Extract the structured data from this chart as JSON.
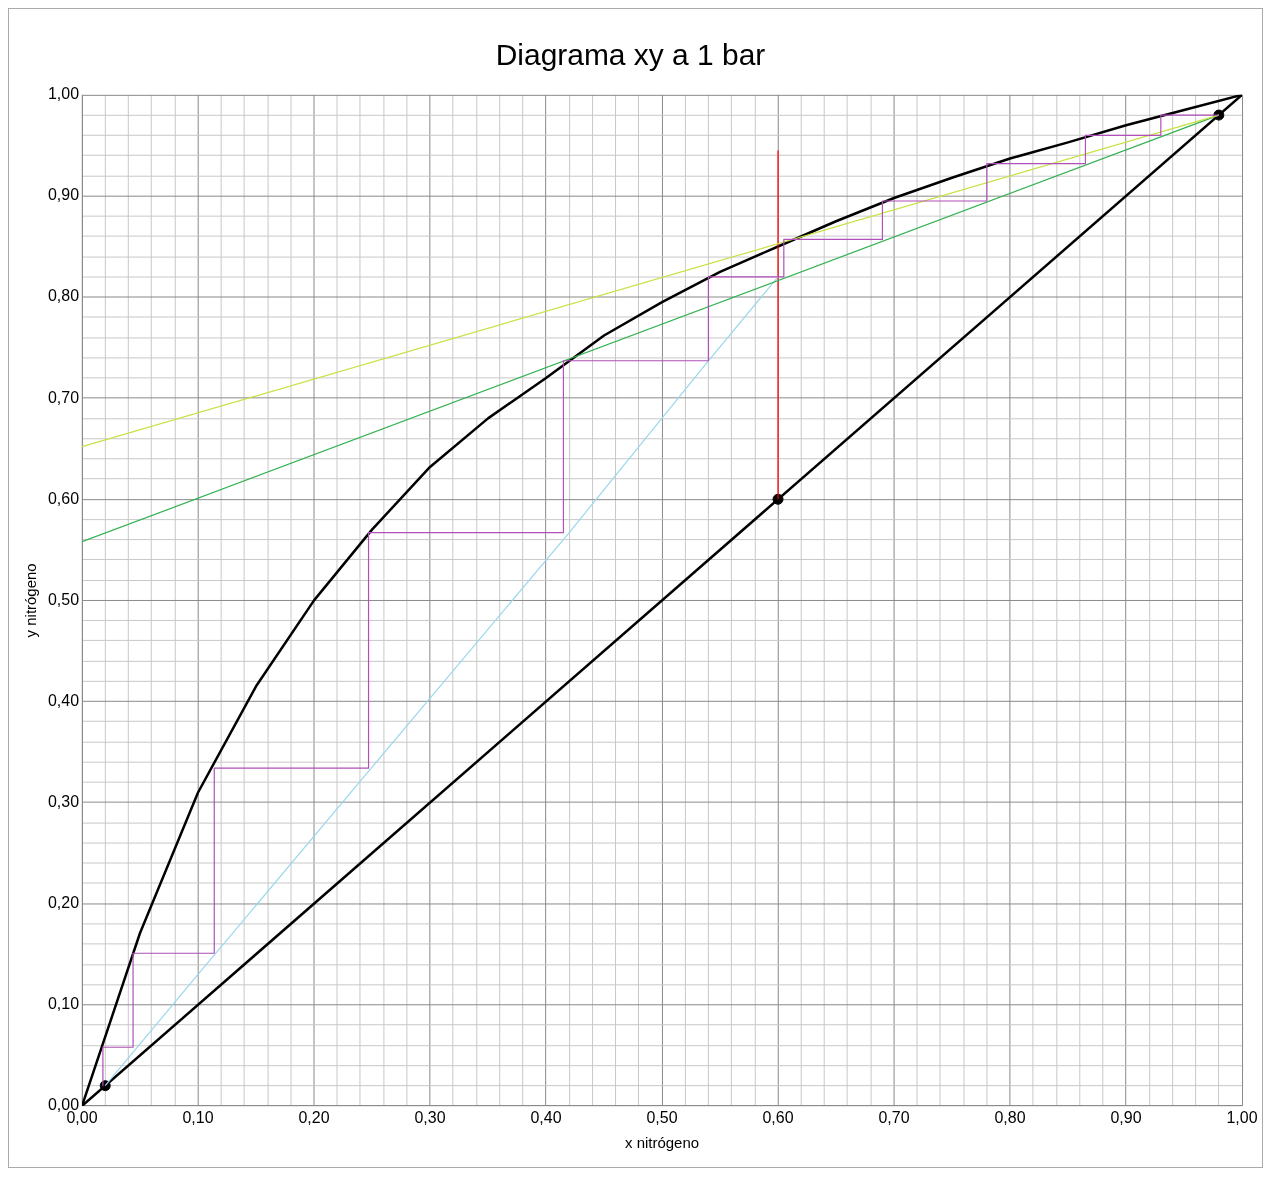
{
  "chart_data": {
    "type": "line",
    "title": "Diagrama xy a 1 bar",
    "xlabel": "x nitrógeno",
    "ylabel": "y nitrógeno",
    "xlim": [
      0,
      1
    ],
    "ylim": [
      0,
      1
    ],
    "grid": true,
    "legend": false,
    "xticks": [
      {
        "value": 0,
        "label": "0,00"
      },
      {
        "value": 0.02,
        "label": null
      },
      {
        "value": 0.04,
        "label": null
      },
      {
        "value": 0.06,
        "label": null
      },
      {
        "value": 0.08,
        "label": null
      },
      {
        "value": 0.1,
        "label": "0,10"
      },
      {
        "value": 0.12,
        "label": null
      },
      {
        "value": 0.14,
        "label": null
      },
      {
        "value": 0.16,
        "label": null
      },
      {
        "value": 0.18,
        "label": null
      },
      {
        "value": 0.2,
        "label": "0,20"
      },
      {
        "value": 0.22,
        "label": null
      },
      {
        "value": 0.24,
        "label": null
      },
      {
        "value": 0.26,
        "label": null
      },
      {
        "value": 0.28,
        "label": null
      },
      {
        "value": 0.3,
        "label": "0,30"
      },
      {
        "value": 0.32,
        "label": null
      },
      {
        "value": 0.34,
        "label": null
      },
      {
        "value": 0.36,
        "label": null
      },
      {
        "value": 0.38,
        "label": null
      },
      {
        "value": 0.4,
        "label": "0,40"
      },
      {
        "value": 0.42,
        "label": null
      },
      {
        "value": 0.44,
        "label": null
      },
      {
        "value": 0.46,
        "label": null
      },
      {
        "value": 0.48,
        "label": null
      },
      {
        "value": 0.5,
        "label": "0,50"
      },
      {
        "value": 0.52,
        "label": null
      },
      {
        "value": 0.54,
        "label": null
      },
      {
        "value": 0.56,
        "label": null
      },
      {
        "value": 0.58,
        "label": null
      },
      {
        "value": 0.6,
        "label": "0,60"
      },
      {
        "value": 0.62,
        "label": null
      },
      {
        "value": 0.64,
        "label": null
      },
      {
        "value": 0.66,
        "label": null
      },
      {
        "value": 0.68,
        "label": null
      },
      {
        "value": 0.7,
        "label": "0,70"
      },
      {
        "value": 0.72,
        "label": null
      },
      {
        "value": 0.74,
        "label": null
      },
      {
        "value": 0.76,
        "label": null
      },
      {
        "value": 0.78,
        "label": null
      },
      {
        "value": 0.8,
        "label": "0,80"
      },
      {
        "value": 0.82,
        "label": null
      },
      {
        "value": 0.84,
        "label": null
      },
      {
        "value": 0.86,
        "label": null
      },
      {
        "value": 0.88,
        "label": null
      },
      {
        "value": 0.9,
        "label": "0,90"
      },
      {
        "value": 0.92,
        "label": null
      },
      {
        "value": 0.94,
        "label": null
      },
      {
        "value": 0.96,
        "label": null
      },
      {
        "value": 0.98,
        "label": null
      },
      {
        "value": 1,
        "label": "1,00"
      }
    ],
    "yticks": [
      {
        "value": 0,
        "label": "0,00"
      },
      {
        "value": 0.02,
        "label": null
      },
      {
        "value": 0.04,
        "label": null
      },
      {
        "value": 0.06,
        "label": null
      },
      {
        "value": 0.08,
        "label": null
      },
      {
        "value": 0.1,
        "label": "0,10"
      },
      {
        "value": 0.12,
        "label": null
      },
      {
        "value": 0.14,
        "label": null
      },
      {
        "value": 0.16,
        "label": null
      },
      {
        "value": 0.18,
        "label": null
      },
      {
        "value": 0.2,
        "label": "0,20"
      },
      {
        "value": 0.22,
        "label": null
      },
      {
        "value": 0.24,
        "label": null
      },
      {
        "value": 0.26,
        "label": null
      },
      {
        "value": 0.28,
        "label": null
      },
      {
        "value": 0.3,
        "label": "0,30"
      },
      {
        "value": 0.32,
        "label": null
      },
      {
        "value": 0.34,
        "label": null
      },
      {
        "value": 0.36,
        "label": null
      },
      {
        "value": 0.38,
        "label": null
      },
      {
        "value": 0.4,
        "label": "0,40"
      },
      {
        "value": 0.42,
        "label": null
      },
      {
        "value": 0.44,
        "label": null
      },
      {
        "value": 0.46,
        "label": null
      },
      {
        "value": 0.48,
        "label": null
      },
      {
        "value": 0.5,
        "label": "0,50"
      },
      {
        "value": 0.52,
        "label": null
      },
      {
        "value": 0.54,
        "label": null
      },
      {
        "value": 0.56,
        "label": null
      },
      {
        "value": 0.58,
        "label": null
      },
      {
        "value": 0.6,
        "label": "0,60"
      },
      {
        "value": 0.62,
        "label": null
      },
      {
        "value": 0.64,
        "label": null
      },
      {
        "value": 0.66,
        "label": null
      },
      {
        "value": 0.68,
        "label": null
      },
      {
        "value": 0.7,
        "label": "0,70"
      },
      {
        "value": 0.72,
        "label": null
      },
      {
        "value": 0.74,
        "label": null
      },
      {
        "value": 0.76,
        "label": null
      },
      {
        "value": 0.78,
        "label": null
      },
      {
        "value": 0.8,
        "label": "0,80"
      },
      {
        "value": 0.82,
        "label": null
      },
      {
        "value": 0.84,
        "label": null
      },
      {
        "value": 0.86,
        "label": null
      },
      {
        "value": 0.88,
        "label": null
      },
      {
        "value": 0.9,
        "label": "0,90"
      },
      {
        "value": 0.92,
        "label": null
      },
      {
        "value": 0.94,
        "label": null
      },
      {
        "value": 0.96,
        "label": null
      },
      {
        "value": 0.98,
        "label": null
      },
      {
        "value": 1,
        "label": "1,00"
      }
    ],
    "series": [
      {
        "color": "#b050b8",
        "marker": "none",
        "line_style": "solid",
        "x": [
          0.98,
          0.93,
          0.93,
          0.865,
          0.865,
          0.78,
          0.78,
          0.69,
          0.69,
          0.605,
          0.605,
          0.54,
          0.54,
          0.415,
          0.415,
          0.247,
          0.247,
          0.114,
          0.114,
          0.044,
          0.044,
          0.018,
          0.018
        ],
        "values": [
          0.98,
          0.98,
          0.96,
          0.96,
          0.932,
          0.932,
          0.895,
          0.895,
          0.857,
          0.857,
          0.82,
          0.82,
          0.737,
          0.737,
          0.567,
          0.567,
          0.334,
          0.334,
          0.151,
          0.151,
          0.058,
          0.058,
          0.02
        ]
      },
      {
        "color": "#c8e040",
        "marker": "none",
        "line_style": "solid",
        "x": [
          0,
          0.98
        ],
        "values": [
          0.652,
          0.98
        ]
      },
      {
        "color": "#30b050",
        "marker": "none",
        "line_style": "solid",
        "x": [
          0,
          0.98
        ],
        "values": [
          0.558,
          0.98
        ]
      },
      {
        "color": "#98d8ec",
        "marker": "none",
        "line_style": "solid",
        "x": [
          0.02,
          0.1,
          0.25,
          0.42,
          0.54,
          0.6
        ],
        "values": [
          0.02,
          0.13,
          0.335,
          0.567,
          0.737,
          0.82
        ]
      },
      {
        "color": "#ff0000",
        "marker": "none",
        "line_style": "solid",
        "x": [
          0.6,
          0.6
        ],
        "values": [
          0.6,
          0.945
        ]
      },
      {
        "color": "#000000",
        "marker": "none",
        "line_style": "solid",
        "x": [
          0,
          0.05,
          0.1,
          0.15,
          0.2,
          0.25,
          0.3,
          0.35,
          0.4,
          0.45,
          0.5,
          0.55,
          0.6,
          0.65,
          0.7,
          0.75,
          0.8,
          0.85,
          0.9,
          0.95,
          1
        ],
        "values": [
          0,
          0.171,
          0.31,
          0.415,
          0.5,
          0.57,
          0.632,
          0.68,
          0.72,
          0.762,
          0.795,
          0.825,
          0.85,
          0.875,
          0.898,
          0.918,
          0.937,
          0.953,
          0.97,
          0.985,
          1
        ]
      },
      {
        "color": "#000000",
        "marker": "none",
        "line_style": "solid",
        "x": [
          0,
          1
        ],
        "values": [
          0,
          1
        ]
      },
      {
        "type": "scatter",
        "color": "#000000",
        "marker": "circle",
        "x": [
          0.02,
          0.6,
          0.98
        ],
        "values": [
          0.02,
          0.6,
          0.98
        ]
      }
    ]
  }
}
